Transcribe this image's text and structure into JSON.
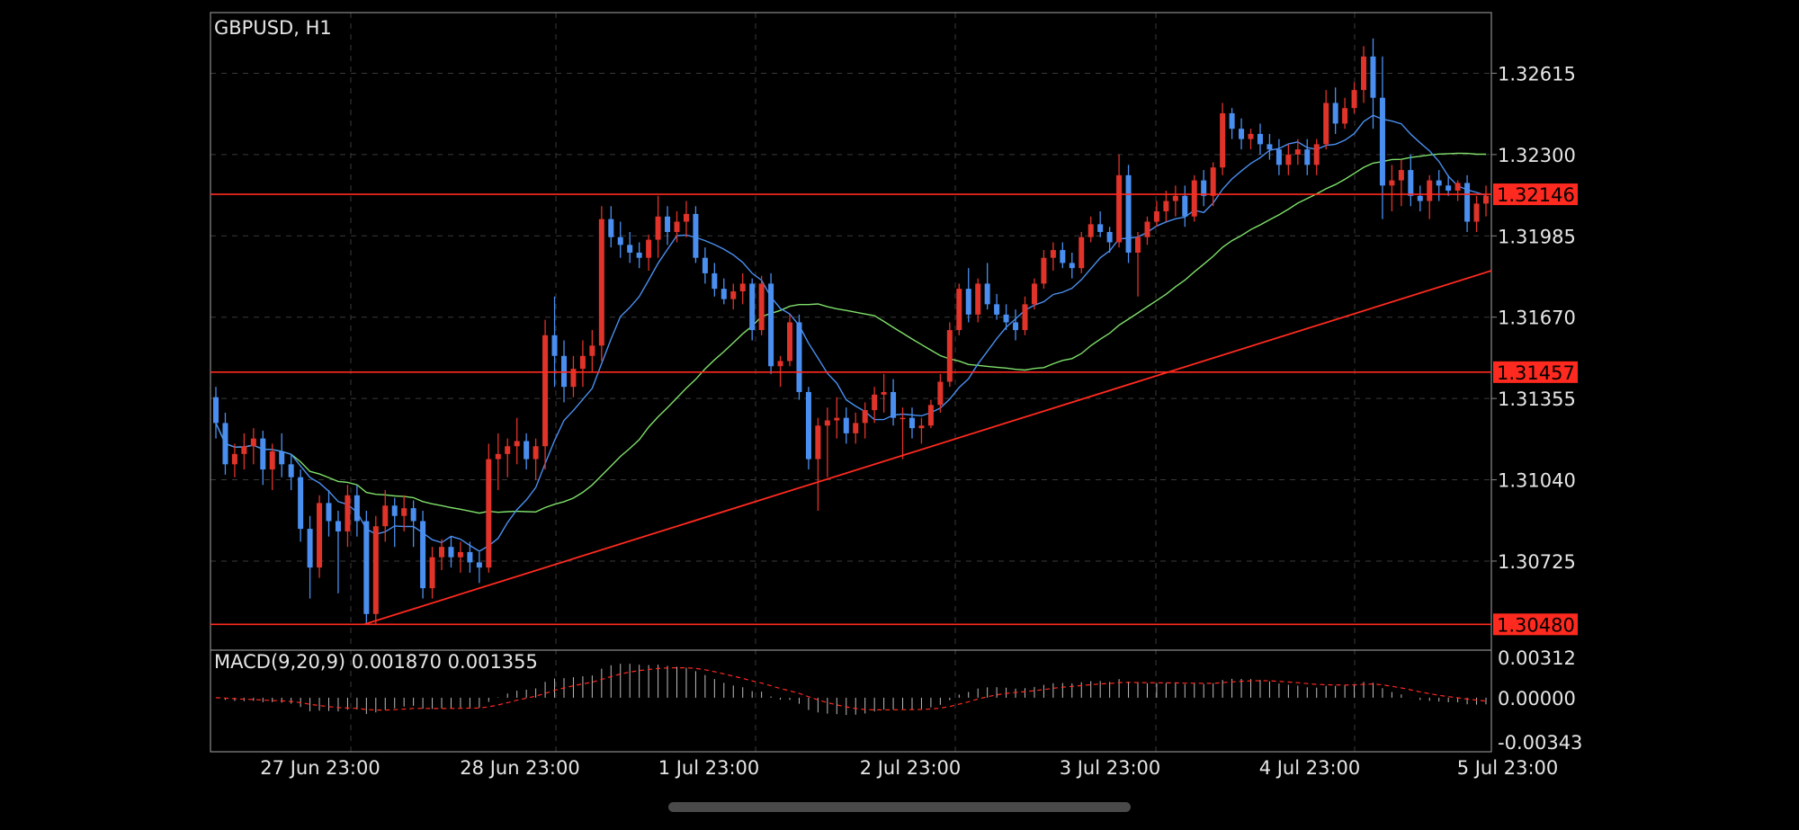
{
  "chart_data": {
    "type": "candlestick",
    "title": "GBPUSD, H1",
    "colors": {
      "bull": "#e0332a",
      "bear": "#4a8ff0",
      "ma_fast": "#4a8ff0",
      "ma_slow": "#7fe06a",
      "hline": "#ff2a1f",
      "trend": "#ff2a1f",
      "grid": "#3a3a3a",
      "frame": "#8a8a8a"
    },
    "price_axis": {
      "min": 1.3038,
      "max": 1.3285,
      "ticks": [
        "1.32615",
        "1.32300",
        "1.31985",
        "1.31670",
        "1.31355",
        "1.31040",
        "1.30725"
      ]
    },
    "time_axis": {
      "labels": [
        "27 Jun 23:00",
        "28 Jun 23:00",
        "1 Jul 23:00",
        "2 Jul 23:00",
        "3 Jul 23:00",
        "4 Jul 23:00",
        "5 Jul 23:00"
      ]
    },
    "horizontal_lines": [
      {
        "price": 1.32146,
        "label": "1.32146"
      },
      {
        "price": 1.31457,
        "label": "1.31457"
      },
      {
        "price": 1.3048,
        "label": "1.30480"
      }
    ],
    "trendline": {
      "start_price": 1.3048,
      "end_price": 1.3185
    },
    "candles": [
      [
        1.3136,
        1.314,
        1.312,
        1.3126
      ],
      [
        1.3126,
        1.313,
        1.3106,
        1.311
      ],
      [
        1.311,
        1.3118,
        1.3105,
        1.3114
      ],
      [
        1.3114,
        1.3122,
        1.3108,
        1.3117
      ],
      [
        1.3117,
        1.3124,
        1.311,
        1.312
      ],
      [
        1.312,
        1.3123,
        1.3102,
        1.3108
      ],
      [
        1.3108,
        1.3118,
        1.31,
        1.3115
      ],
      [
        1.3115,
        1.3122,
        1.3105,
        1.311
      ],
      [
        1.311,
        1.3114,
        1.31,
        1.3105
      ],
      [
        1.3105,
        1.3108,
        1.308,
        1.3085
      ],
      [
        1.3085,
        1.309,
        1.3058,
        1.307
      ],
      [
        1.307,
        1.3098,
        1.3066,
        1.3095
      ],
      [
        1.3095,
        1.31,
        1.3082,
        1.3088
      ],
      [
        1.3088,
        1.3092,
        1.306,
        1.3084
      ],
      [
        1.3084,
        1.3102,
        1.3078,
        1.3098
      ],
      [
        1.3098,
        1.3102,
        1.3082,
        1.3088
      ],
      [
        1.3088,
        1.3092,
        1.3048,
        1.3052
      ],
      [
        1.3052,
        1.309,
        1.3048,
        1.3086
      ],
      [
        1.3086,
        1.31,
        1.308,
        1.3094
      ],
      [
        1.3094,
        1.3097,
        1.3078,
        1.309
      ],
      [
        1.309,
        1.3098,
        1.3084,
        1.3093
      ],
      [
        1.3093,
        1.3096,
        1.3078,
        1.3088
      ],
      [
        1.3088,
        1.3092,
        1.3058,
        1.3062
      ],
      [
        1.3062,
        1.3078,
        1.3058,
        1.3074
      ],
      [
        1.3074,
        1.3081,
        1.3069,
        1.3078
      ],
      [
        1.3078,
        1.3082,
        1.307,
        1.3074
      ],
      [
        1.3074,
        1.308,
        1.3068,
        1.3076
      ],
      [
        1.3076,
        1.308,
        1.3068,
        1.3072
      ],
      [
        1.3072,
        1.3076,
        1.3064,
        1.307
      ],
      [
        1.307,
        1.3118,
        1.3068,
        1.3112
      ],
      [
        1.3112,
        1.3122,
        1.31,
        1.3114
      ],
      [
        1.3114,
        1.312,
        1.3105,
        1.3117
      ],
      [
        1.3117,
        1.3128,
        1.311,
        1.3119
      ],
      [
        1.3119,
        1.3122,
        1.3108,
        1.3112
      ],
      [
        1.3112,
        1.312,
        1.3104,
        1.3117
      ],
      [
        1.3117,
        1.3166,
        1.3108,
        1.316
      ],
      [
        1.316,
        1.3175,
        1.314,
        1.3152
      ],
      [
        1.3152,
        1.3158,
        1.3134,
        1.314
      ],
      [
        1.314,
        1.3152,
        1.3136,
        1.3147
      ],
      [
        1.3147,
        1.3158,
        1.314,
        1.3152
      ],
      [
        1.3152,
        1.3162,
        1.3146,
        1.3156
      ],
      [
        1.3156,
        1.321,
        1.315,
        1.3205
      ],
      [
        1.3205,
        1.321,
        1.3194,
        1.3198
      ],
      [
        1.3198,
        1.3204,
        1.319,
        1.3195
      ],
      [
        1.3195,
        1.32,
        1.3188,
        1.3192
      ],
      [
        1.3192,
        1.3196,
        1.3186,
        1.319
      ],
      [
        1.319,
        1.3199,
        1.3185,
        1.3197
      ],
      [
        1.3197,
        1.3214,
        1.319,
        1.3206
      ],
      [
        1.3206,
        1.321,
        1.3195,
        1.32
      ],
      [
        1.32,
        1.3208,
        1.3196,
        1.3204
      ],
      [
        1.3204,
        1.3212,
        1.3198,
        1.3207
      ],
      [
        1.3207,
        1.321,
        1.3188,
        1.319
      ],
      [
        1.319,
        1.3194,
        1.318,
        1.3184
      ],
      [
        1.3184,
        1.3188,
        1.3175,
        1.3178
      ],
      [
        1.3178,
        1.3182,
        1.3172,
        1.3174
      ],
      [
        1.3174,
        1.318,
        1.317,
        1.3177
      ],
      [
        1.3177,
        1.3184,
        1.3172,
        1.318
      ],
      [
        1.318,
        1.3182,
        1.3158,
        1.3162
      ],
      [
        1.3162,
        1.3183,
        1.316,
        1.318
      ],
      [
        1.318,
        1.3184,
        1.3145,
        1.3148
      ],
      [
        1.3148,
        1.3152,
        1.314,
        1.315
      ],
      [
        1.315,
        1.3168,
        1.3148,
        1.3165
      ],
      [
        1.3165,
        1.3168,
        1.3135,
        1.3138
      ],
      [
        1.3138,
        1.314,
        1.3108,
        1.3112
      ],
      [
        1.3112,
        1.3128,
        1.3092,
        1.3125
      ],
      [
        1.3125,
        1.3132,
        1.3105,
        1.3127
      ],
      [
        1.3127,
        1.3136,
        1.312,
        1.3128
      ],
      [
        1.3128,
        1.3132,
        1.3118,
        1.3122
      ],
      [
        1.3122,
        1.313,
        1.3118,
        1.3126
      ],
      [
        1.3126,
        1.3134,
        1.312,
        1.3131
      ],
      [
        1.3131,
        1.314,
        1.3126,
        1.3137
      ],
      [
        1.3137,
        1.3145,
        1.313,
        1.3138
      ],
      [
        1.3138,
        1.3143,
        1.3125,
        1.3128
      ],
      [
        1.3128,
        1.3132,
        1.3112,
        1.3128
      ],
      [
        1.3128,
        1.3132,
        1.312,
        1.3124
      ],
      [
        1.3124,
        1.3128,
        1.3118,
        1.3125
      ],
      [
        1.3125,
        1.3135,
        1.3124,
        1.3133
      ],
      [
        1.3133,
        1.3145,
        1.313,
        1.3142
      ],
      [
        1.3142,
        1.3165,
        1.314,
        1.3162
      ],
      [
        1.3162,
        1.318,
        1.316,
        1.3178
      ],
      [
        1.3178,
        1.3186,
        1.3165,
        1.3168
      ],
      [
        1.3168,
        1.3182,
        1.3165,
        1.318
      ],
      [
        1.318,
        1.3188,
        1.317,
        1.3172
      ],
      [
        1.3172,
        1.3176,
        1.3166,
        1.3168
      ],
      [
        1.3168,
        1.3172,
        1.3162,
        1.3165
      ],
      [
        1.3165,
        1.317,
        1.3158,
        1.3162
      ],
      [
        1.3162,
        1.3175,
        1.316,
        1.3172
      ],
      [
        1.3172,
        1.3182,
        1.317,
        1.318
      ],
      [
        1.318,
        1.3193,
        1.3178,
        1.319
      ],
      [
        1.319,
        1.3196,
        1.3185,
        1.3193
      ],
      [
        1.3193,
        1.3196,
        1.3186,
        1.3188
      ],
      [
        1.3188,
        1.3192,
        1.3182,
        1.3186
      ],
      [
        1.3186,
        1.32,
        1.3184,
        1.3198
      ],
      [
        1.3198,
        1.3206,
        1.3196,
        1.3203
      ],
      [
        1.3203,
        1.3208,
        1.3198,
        1.32
      ],
      [
        1.32,
        1.3202,
        1.3192,
        1.3196
      ],
      [
        1.3196,
        1.323,
        1.3194,
        1.3222
      ],
      [
        1.3222,
        1.3226,
        1.3188,
        1.3192
      ],
      [
        1.3192,
        1.32,
        1.3175,
        1.3198
      ],
      [
        1.3198,
        1.3206,
        1.3195,
        1.3204
      ],
      [
        1.3204,
        1.3212,
        1.3202,
        1.3208
      ],
      [
        1.3208,
        1.3216,
        1.3204,
        1.3212
      ],
      [
        1.3212,
        1.3218,
        1.3206,
        1.3214
      ],
      [
        1.3214,
        1.3218,
        1.3202,
        1.3206
      ],
      [
        1.3206,
        1.3222,
        1.3204,
        1.322
      ],
      [
        1.322,
        1.3224,
        1.321,
        1.3214
      ],
      [
        1.3214,
        1.3227,
        1.321,
        1.3225
      ],
      [
        1.3225,
        1.325,
        1.3222,
        1.3246
      ],
      [
        1.3246,
        1.3248,
        1.3236,
        1.324
      ],
      [
        1.324,
        1.3244,
        1.3232,
        1.3236
      ],
      [
        1.3236,
        1.324,
        1.3232,
        1.3238
      ],
      [
        1.3238,
        1.3242,
        1.323,
        1.3234
      ],
      [
        1.3234,
        1.3238,
        1.3228,
        1.3232
      ],
      [
        1.3232,
        1.3236,
        1.3222,
        1.3226
      ],
      [
        1.3226,
        1.3234,
        1.3222,
        1.323
      ],
      [
        1.323,
        1.3236,
        1.3226,
        1.3232
      ],
      [
        1.3232,
        1.3236,
        1.3222,
        1.3226
      ],
      [
        1.3226,
        1.3236,
        1.3222,
        1.3234
      ],
      [
        1.3234,
        1.3255,
        1.3232,
        1.325
      ],
      [
        1.325,
        1.3256,
        1.3238,
        1.3242
      ],
      [
        1.3242,
        1.3252,
        1.324,
        1.3248
      ],
      [
        1.3248,
        1.3258,
        1.3246,
        1.3255
      ],
      [
        1.3255,
        1.3272,
        1.325,
        1.3268
      ],
      [
        1.3268,
        1.3275,
        1.324,
        1.3252
      ],
      [
        1.3252,
        1.3268,
        1.3205,
        1.3218
      ],
      [
        1.3218,
        1.3226,
        1.3208,
        1.322
      ],
      [
        1.322,
        1.3228,
        1.321,
        1.3224
      ],
      [
        1.3224,
        1.323,
        1.321,
        1.3214
      ],
      [
        1.3214,
        1.3218,
        1.3208,
        1.3212
      ],
      [
        1.3212,
        1.3222,
        1.3205,
        1.322
      ],
      [
        1.322,
        1.3224,
        1.3212,
        1.3218
      ],
      [
        1.3218,
        1.3222,
        1.3214,
        1.3216
      ],
      [
        1.3216,
        1.322,
        1.3212,
        1.3219
      ],
      [
        1.3219,
        1.3222,
        1.32,
        1.3204
      ],
      [
        1.3204,
        1.3214,
        1.32,
        1.3211
      ],
      [
        1.3211,
        1.3218,
        1.3206,
        1.3214
      ]
    ],
    "macd": {
      "label": "MACD(9,20,9) 0.001870 0.001355",
      "min": -0.0039,
      "max": 0.0034,
      "ticks": [
        "0.00312",
        "0.00000",
        "-0.00343"
      ]
    }
  },
  "ui": {
    "accent": "#ff2a1f"
  }
}
